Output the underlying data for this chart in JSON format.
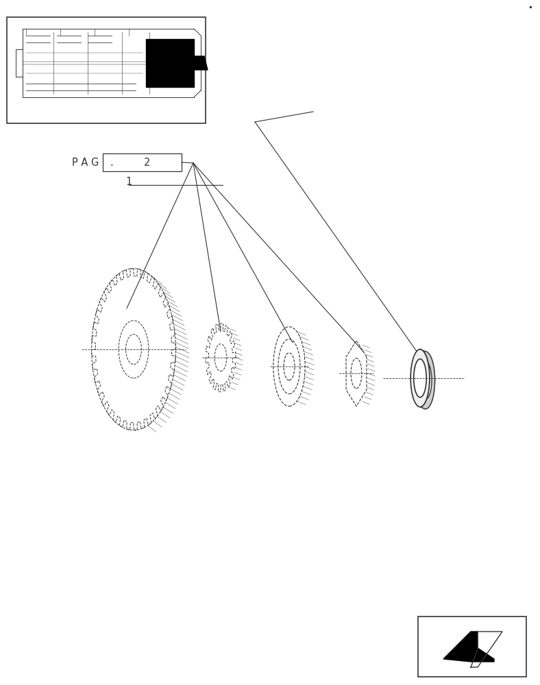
{
  "bg_color": "#ffffff",
  "line_color": "#333333",
  "fig_width": 7.88,
  "fig_height": 10.0,
  "parts_label_pag": "P A G",
  "parts_label_num": "2",
  "parts_label_item": "1"
}
